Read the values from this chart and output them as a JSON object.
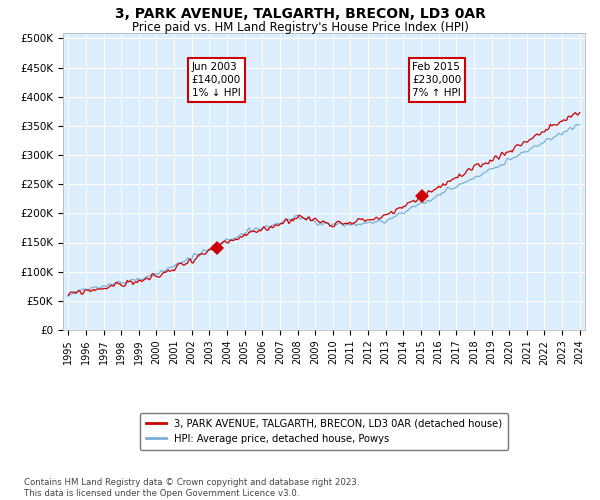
{
  "title": "3, PARK AVENUE, TALGARTH, BRECON, LD3 0AR",
  "subtitle": "Price paid vs. HM Land Registry's House Price Index (HPI)",
  "title_fontsize": 10,
  "subtitle_fontsize": 8.5,
  "ylabel_ticks": [
    "£0",
    "£50K",
    "£100K",
    "£150K",
    "£200K",
    "£250K",
    "£300K",
    "£350K",
    "£400K",
    "£450K",
    "£500K"
  ],
  "ytick_vals": [
    0,
    50000,
    100000,
    150000,
    200000,
    250000,
    300000,
    350000,
    400000,
    450000,
    500000
  ],
  "ylim": [
    0,
    510000
  ],
  "sale1_year": 2003.42,
  "sale1_price": 140000,
  "sale2_year": 2015.08,
  "sale2_price": 230000,
  "ann1_text": "Jun 2003\n£140,000\n1% ↓ HPI",
  "ann2_text": "Feb 2015\n£230,000\n7% ↑ HPI",
  "sale_marker_color": "#cc0000",
  "hpi_line_color": "#7ab0d4",
  "price_line_color": "#cc0000",
  "legend_label1": "3, PARK AVENUE, TALGARTH, BRECON, LD3 0AR (detached house)",
  "legend_label2": "HPI: Average price, detached house, Powys",
  "footer": "Contains HM Land Registry data © Crown copyright and database right 2023.\nThis data is licensed under the Open Government Licence v3.0.",
  "plot_bg": "#ddeeff",
  "fig_bg": "#ffffff"
}
